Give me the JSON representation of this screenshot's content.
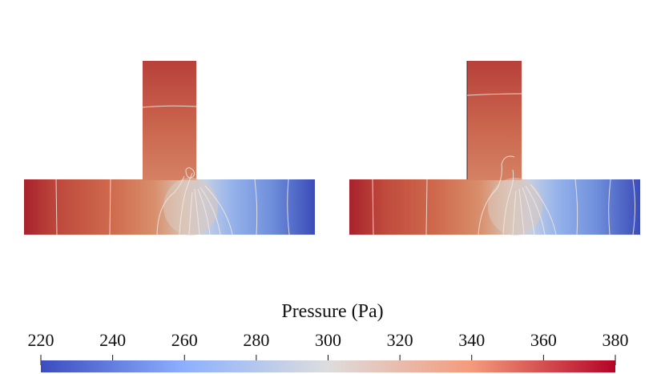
{
  "colorbar": {
    "title": "Pressure (Pa)",
    "min": 220,
    "max": 380,
    "ticks": [
      220,
      240,
      260,
      280,
      300,
      320,
      340,
      360,
      380
    ],
    "tick_labels": [
      "220",
      "240",
      "260",
      "280",
      "300",
      "320",
      "340",
      "360",
      "380"
    ],
    "colormap": "cool-to-warm",
    "color_low": "#3b4cc0",
    "color_mid": "#dddddd",
    "color_high": "#b40426"
  },
  "panels": [
    {
      "name": "left-t-junction",
      "contours": "iso-pressure lines"
    },
    {
      "name": "right-t-junction",
      "contours": "iso-pressure lines"
    }
  ]
}
